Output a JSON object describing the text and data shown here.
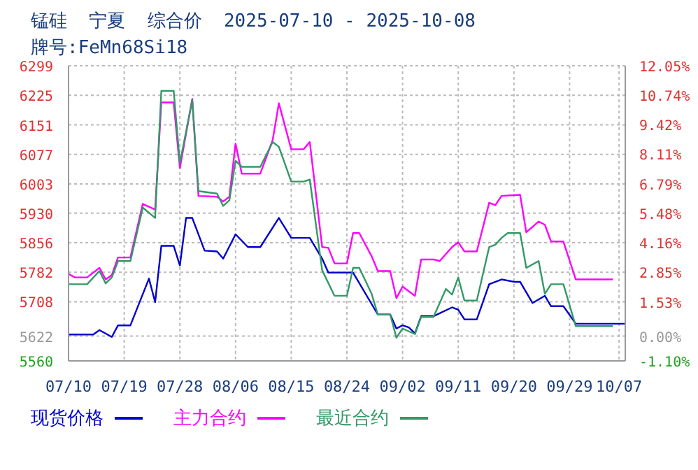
{
  "chart_data": {
    "type": "line",
    "title": "锰硅  宁夏  综合价  2025-07-10 - 2025-10-08",
    "subtitle": "牌号:FeMn68Si18",
    "xlim": [
      "2025-07-10",
      "2025-10-08"
    ],
    "xticks": [
      {
        "value": "2025-07-10",
        "label": "07/10"
      },
      {
        "value": "2025-07-19",
        "label": "07/19"
      },
      {
        "value": "2025-07-28",
        "label": "07/28"
      },
      {
        "value": "2025-08-06",
        "label": "08/06"
      },
      {
        "value": "2025-08-15",
        "label": "08/15"
      },
      {
        "value": "2025-08-24",
        "label": "08/24"
      },
      {
        "value": "2025-09-02",
        "label": "09/02"
      },
      {
        "value": "2025-09-11",
        "label": "09/11"
      },
      {
        "value": "2025-09-20",
        "label": "09/20"
      },
      {
        "value": "2025-09-29",
        "label": "09/29"
      },
      {
        "value": "2025-10-07",
        "label": "10/07"
      }
    ],
    "ylim": [
      5560,
      6299
    ],
    "yticks": [
      5560,
      5622,
      5708,
      5782,
      5856,
      5930,
      6003,
      6077,
      6151,
      6225,
      6299
    ],
    "y2lim": [
      -1.1,
      12.05
    ],
    "y2ticks": [
      {
        "value": -1.1,
        "label": "-1.10%"
      },
      {
        "value": 0,
        "label": "0.00%"
      },
      {
        "value": 1.53,
        "label": "1.53%"
      },
      {
        "value": 2.85,
        "label": "2.85%"
      },
      {
        "value": 4.16,
        "label": "4.16%"
      },
      {
        "value": 5.48,
        "label": "5.48%"
      },
      {
        "value": 6.79,
        "label": "6.79%"
      },
      {
        "value": 8.11,
        "label": "8.11%"
      },
      {
        "value": 9.42,
        "label": "9.42%"
      },
      {
        "value": 10.74,
        "label": "10.74%"
      },
      {
        "value": 12.05,
        "label": "12.05%"
      }
    ],
    "grid": true,
    "legend": "bottom",
    "series": [
      {
        "name": "现货价格",
        "color": "#0000cc",
        "x": [
          "2025-07-10",
          "2025-07-14",
          "2025-07-15",
          "2025-07-17",
          "2025-07-18",
          "2025-07-20",
          "2025-07-23",
          "2025-07-24",
          "2025-07-25",
          "2025-07-27",
          "2025-07-28",
          "2025-07-29",
          "2025-07-30",
          "2025-08-01",
          "2025-08-03",
          "2025-08-04",
          "2025-08-06",
          "2025-08-08",
          "2025-08-10",
          "2025-08-13",
          "2025-08-15",
          "2025-08-18",
          "2025-08-20",
          "2025-08-21",
          "2025-08-25",
          "2025-08-29",
          "2025-08-31",
          "2025-09-01",
          "2025-09-02",
          "2025-09-03",
          "2025-09-04",
          "2025-09-05",
          "2025-09-07",
          "2025-09-10",
          "2025-09-11",
          "2025-09-12",
          "2025-09-14",
          "2025-09-16",
          "2025-09-18",
          "2025-09-20",
          "2025-09-21",
          "2025-09-23",
          "2025-09-25",
          "2025-09-26",
          "2025-09-28",
          "2025-09-30",
          "2025-10-08"
        ],
        "values": [
          5626,
          5626,
          5637,
          5620,
          5649,
          5649,
          5766,
          5707,
          5848,
          5848,
          5799,
          5918,
          5918,
          5836,
          5834,
          5816,
          5877,
          5845,
          5845,
          5918,
          5868,
          5868,
          5816,
          5781,
          5781,
          5676,
          5676,
          5641,
          5649,
          5644,
          5629,
          5672,
          5672,
          5694,
          5688,
          5664,
          5664,
          5752,
          5764,
          5758,
          5758,
          5705,
          5723,
          5697,
          5697,
          5653,
          5653
        ]
      },
      {
        "name": "主力合约",
        "color": "#ff00ff",
        "x": [
          "2025-07-10",
          "2025-07-11",
          "2025-07-13",
          "2025-07-15",
          "2025-07-16",
          "2025-07-17",
          "2025-07-18",
          "2025-07-20",
          "2025-07-22",
          "2025-07-24",
          "2025-07-25",
          "2025-07-27",
          "2025-07-28",
          "2025-07-30",
          "2025-07-31",
          "2025-08-03",
          "2025-08-04",
          "2025-08-05",
          "2025-08-06",
          "2025-08-07",
          "2025-08-10",
          "2025-08-12",
          "2025-08-13",
          "2025-08-15",
          "2025-08-17",
          "2025-08-18",
          "2025-08-20",
          "2025-08-21",
          "2025-08-22",
          "2025-08-24",
          "2025-08-25",
          "2025-08-26",
          "2025-08-28",
          "2025-08-29",
          "2025-08-31",
          "2025-09-01",
          "2025-09-02",
          "2025-09-04",
          "2025-09-05",
          "2025-09-07",
          "2025-09-08",
          "2025-09-10",
          "2025-09-11",
          "2025-09-12",
          "2025-09-14",
          "2025-09-16",
          "2025-09-17",
          "2025-09-18",
          "2025-09-21",
          "2025-09-22",
          "2025-09-24",
          "2025-09-25",
          "2025-09-26",
          "2025-09-28",
          "2025-09-30",
          "2025-10-06"
        ],
        "values": [
          5778,
          5769,
          5769,
          5793,
          5764,
          5775,
          5819,
          5819,
          5953,
          5939,
          6207,
          6207,
          6043,
          6216,
          5973,
          5971,
          5959,
          5971,
          6104,
          6029,
          6029,
          6113,
          6205,
          6090,
          6090,
          6108,
          5845,
          5843,
          5804,
          5804,
          5880,
          5880,
          5822,
          5785,
          5785,
          5717,
          5746,
          5723,
          5814,
          5814,
          5810,
          5845,
          5857,
          5834,
          5834,
          5956,
          5950,
          5973,
          5976,
          5882,
          5909,
          5901,
          5859,
          5859,
          5764,
          5764
        ]
      },
      {
        "name": "最近合约",
        "color": "#339966",
        "x": [
          "2025-07-10",
          "2025-07-13",
          "2025-07-15",
          "2025-07-16",
          "2025-07-17",
          "2025-07-18",
          "2025-07-20",
          "2025-07-22",
          "2025-07-24",
          "2025-07-25",
          "2025-07-27",
          "2025-07-28",
          "2025-07-30",
          "2025-07-31",
          "2025-08-03",
          "2025-08-04",
          "2025-08-05",
          "2025-08-06",
          "2025-08-07",
          "2025-08-10",
          "2025-08-12",
          "2025-08-13",
          "2025-08-15",
          "2025-08-17",
          "2025-08-18",
          "2025-08-20",
          "2025-08-22",
          "2025-08-24",
          "2025-08-25",
          "2025-08-26",
          "2025-08-28",
          "2025-08-29",
          "2025-08-31",
          "2025-09-01",
          "2025-09-02",
          "2025-09-04",
          "2025-09-05",
          "2025-09-07",
          "2025-09-09",
          "2025-09-10",
          "2025-09-11",
          "2025-09-12",
          "2025-09-14",
          "2025-09-16",
          "2025-09-17",
          "2025-09-18",
          "2025-09-19",
          "2025-09-21",
          "2025-09-22",
          "2025-09-24",
          "2025-09-25",
          "2025-09-26",
          "2025-09-28",
          "2025-09-30",
          "2025-10-06"
        ],
        "values": [
          5752,
          5752,
          5785,
          5754,
          5769,
          5810,
          5810,
          5944,
          5918,
          6236,
          6236,
          6055,
          6213,
          5985,
          5979,
          5948,
          5962,
          6061,
          6046,
          6046,
          6108,
          6096,
          6009,
          6009,
          6014,
          5787,
          5723,
          5723,
          5793,
          5793,
          5728,
          5676,
          5676,
          5618,
          5641,
          5627,
          5670,
          5670,
          5740,
          5726,
          5769,
          5711,
          5711,
          5845,
          5851,
          5868,
          5880,
          5880,
          5793,
          5810,
          5728,
          5752,
          5752,
          5647,
          5647
        ]
      }
    ]
  }
}
